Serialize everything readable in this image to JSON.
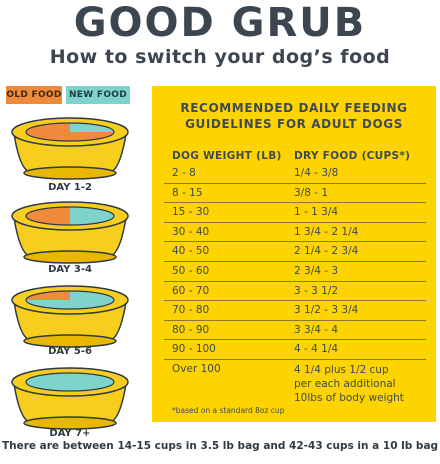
{
  "header": {
    "brand": "GOOD GRUB",
    "subtitle": "How to switch your dog’s food"
  },
  "legend": {
    "old_label": "OLD FOOD",
    "new_label": "NEW FOOD",
    "old_color": "#ef8a3c",
    "new_color": "#7fd3cd"
  },
  "bowls": [
    {
      "label": "DAY 1-2",
      "old_fraction": 0.75,
      "new_fraction": 0.25
    },
    {
      "label": "DAY 3-4",
      "old_fraction": 0.5,
      "new_fraction": 0.5
    },
    {
      "label": "DAY 5-6",
      "old_fraction": 0.25,
      "new_fraction": 0.75
    },
    {
      "label": "DAY 7+",
      "old_fraction": 0.0,
      "new_fraction": 1.0
    }
  ],
  "guidelines": {
    "title_line1": "RECOMMENDED DAILY FEEDING",
    "title_line2": "GUIDELINES FOR ADULT DOGS",
    "weight_header": "DOG WEIGHT (LB)",
    "food_header": "DRY FOOD (CUPS*)",
    "rows": [
      {
        "weight": "2 - 8",
        "food": "1/4 - 3/8"
      },
      {
        "weight": "8 - 15",
        "food": "3/8 - 1"
      },
      {
        "weight": "15 - 30",
        "food": "1 - 1 3/4"
      },
      {
        "weight": "30 - 40",
        "food": "1 3/4 - 2 1/4"
      },
      {
        "weight": "40 - 50",
        "food": "2 1/4 - 2 3/4"
      },
      {
        "weight": "50 - 60",
        "food": "2 3/4 - 3"
      },
      {
        "weight": "60 - 70",
        "food": "3 - 3 1/2"
      },
      {
        "weight": "70 - 80",
        "food": "3 1/2 - 3 3/4"
      },
      {
        "weight": "80 - 90",
        "food": "3 3/4 - 4"
      },
      {
        "weight": "90 - 100",
        "food": "4 - 4 1/4"
      }
    ],
    "last_row": {
      "weight": "Over 100",
      "food_line1": "4 1/4 plus 1/2 cup",
      "food_line2": "per each additional",
      "food_line3": "10lbs of body weight"
    },
    "footnote": "*based on a standard 8oz cup",
    "card_color": "#fdd400"
  },
  "bottom_note": "There are between 14-15 cups in 3.5 lb bag and 42-43 cups in a 10 lb bag"
}
